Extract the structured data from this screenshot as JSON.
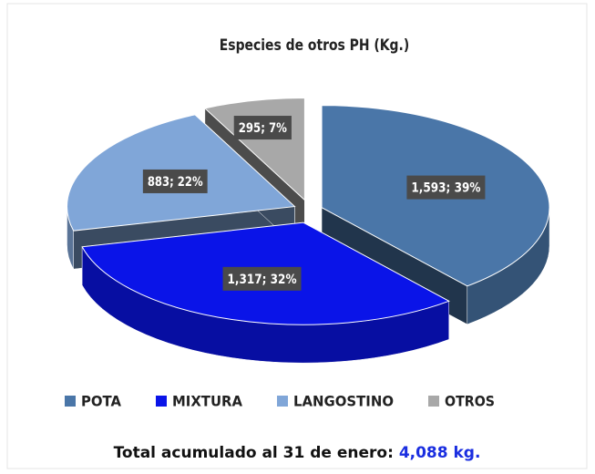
{
  "chart_data": {
    "type": "pie3d",
    "title": "Especies de otros PH (Kg.)",
    "categories": [
      "POTA",
      "MIXTURA",
      "LANGOSTINO",
      "OTROS"
    ],
    "values": [
      1593,
      1317,
      883,
      295
    ],
    "value_labels": [
      "1,593; 39%",
      "1,317; 32%",
      "883; 22%",
      "295; 7%"
    ],
    "colors": [
      "#4a76a8",
      "#0a14e8",
      "#80a6d8",
      "#a8a8a8"
    ],
    "legend": "bottom"
  },
  "footer": {
    "text": "Total acumulado al 31 de enero:",
    "total": "4,088 kg."
  }
}
